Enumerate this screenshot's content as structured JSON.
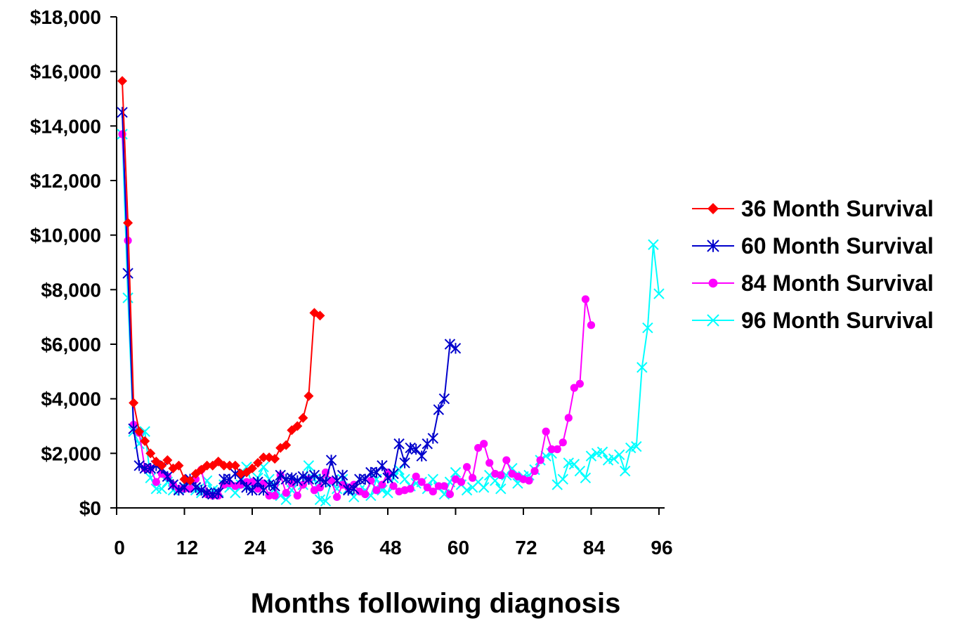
{
  "chart_data": {
    "type": "line",
    "title": "",
    "xlabel": "Months following diagnosis",
    "ylabel": "",
    "xlim": [
      0,
      97
    ],
    "ylim": [
      0,
      18000
    ],
    "x_ticks": [
      0,
      12,
      24,
      36,
      48,
      60,
      72,
      84,
      96
    ],
    "x_tick_labels": [
      "0",
      "12",
      "24",
      "36",
      "48",
      "60",
      "72",
      "84",
      "96"
    ],
    "y_ticks": [
      0,
      2000,
      4000,
      6000,
      8000,
      10000,
      12000,
      14000,
      16000,
      18000
    ],
    "y_tick_labels": [
      "$0",
      "$2,000",
      "$4,000",
      "$6,000",
      "$8,000",
      "$10,000",
      "$12,000",
      "$14,000",
      "$16,000",
      "$18,000"
    ],
    "grid": false,
    "legend_position": "right",
    "series": [
      {
        "name": "36 Month Survival",
        "color": "#ff0000",
        "marker": "diamond",
        "x": [
          1,
          2,
          3,
          4,
          5,
          6,
          7,
          8,
          9,
          10,
          11,
          12,
          13,
          14,
          15,
          16,
          17,
          18,
          19,
          20,
          21,
          22,
          23,
          24,
          25,
          26,
          27,
          28,
          29,
          30,
          31,
          32,
          33,
          34,
          35,
          36
        ],
        "values": [
          15650,
          10450,
          3850,
          2800,
          2450,
          2000,
          1700,
          1550,
          1750,
          1450,
          1550,
          1050,
          1000,
          1250,
          1400,
          1550,
          1550,
          1700,
          1550,
          1550,
          1550,
          1250,
          1300,
          1450,
          1650,
          1850,
          1850,
          1800,
          2200,
          2300,
          2850,
          3000,
          3300,
          4100,
          7150,
          7050
        ]
      },
      {
        "name": "60 Month Survival",
        "color": "#0000cc",
        "marker": "star",
        "x": [
          1,
          2,
          3,
          4,
          5,
          6,
          7,
          8,
          9,
          10,
          11,
          12,
          13,
          14,
          15,
          16,
          17,
          18,
          19,
          20,
          21,
          22,
          23,
          24,
          25,
          26,
          27,
          28,
          29,
          30,
          31,
          32,
          33,
          34,
          35,
          36,
          37,
          38,
          39,
          40,
          41,
          42,
          43,
          44,
          45,
          46,
          47,
          48,
          49,
          50,
          51,
          52,
          53,
          54,
          55,
          56,
          57,
          58,
          59,
          60
        ],
        "values": [
          14500,
          8600,
          2900,
          1550,
          1450,
          1450,
          1550,
          1450,
          1150,
          850,
          650,
          750,
          1050,
          750,
          650,
          550,
          500,
          550,
          1050,
          1050,
          1250,
          1050,
          750,
          650,
          950,
          650,
          850,
          800,
          1200,
          1050,
          1100,
          1000,
          1150,
          1050,
          1200,
          1050,
          950,
          1750,
          1000,
          1200,
          650,
          700,
          1050,
          1050,
          1300,
          1300,
          1550,
          1100,
          1250,
          2350,
          1650,
          2200,
          2150,
          1900,
          2350,
          2550,
          3600,
          4000,
          6000,
          5850
        ]
      },
      {
        "name": "84 Month Survival",
        "color": "#ff00ff",
        "marker": "circle",
        "x": [
          1,
          2,
          3,
          4,
          5,
          6,
          7,
          8,
          9,
          10,
          11,
          12,
          13,
          14,
          15,
          16,
          17,
          18,
          19,
          20,
          21,
          22,
          23,
          24,
          25,
          26,
          27,
          28,
          29,
          30,
          31,
          32,
          33,
          34,
          35,
          36,
          37,
          38,
          39,
          40,
          41,
          42,
          43,
          44,
          45,
          46,
          47,
          48,
          49,
          50,
          51,
          52,
          53,
          54,
          55,
          56,
          57,
          58,
          59,
          60,
          61,
          62,
          63,
          64,
          65,
          66,
          67,
          68,
          69,
          70,
          71,
          72,
          73,
          74,
          75,
          76,
          77,
          78,
          79,
          80,
          81,
          82,
          83,
          84
        ],
        "values": [
          13700,
          9800,
          3050,
          2750,
          1450,
          1450,
          950,
          1250,
          1150,
          850,
          700,
          700,
          700,
          1050,
          1400,
          500,
          450,
          450,
          850,
          900,
          800,
          850,
          950,
          950,
          700,
          900,
          450,
          450,
          1200,
          550,
          900,
          450,
          850,
          1050,
          650,
          750,
          1300,
          1000,
          400,
          850,
          750,
          850,
          600,
          500,
          1000,
          650,
          850,
          1300,
          800,
          600,
          650,
          700,
          1150,
          950,
          750,
          600,
          800,
          800,
          500,
          1050,
          950,
          1500,
          1100,
          2200,
          2350,
          1650,
          1250,
          1200,
          1750,
          1250,
          1150,
          1050,
          1000,
          1350,
          1750,
          2800,
          2150,
          2150,
          2400,
          3300,
          4400,
          4550,
          7650,
          6700
        ]
      },
      {
        "name": "96 Month Survival",
        "color": "#00ffff",
        "marker": "cross",
        "x": [
          1,
          2,
          3,
          4,
          5,
          6,
          7,
          8,
          9,
          10,
          11,
          12,
          13,
          14,
          15,
          16,
          17,
          18,
          19,
          20,
          21,
          22,
          23,
          24,
          25,
          26,
          27,
          28,
          29,
          30,
          31,
          32,
          33,
          34,
          35,
          36,
          37,
          38,
          39,
          40,
          41,
          42,
          43,
          44,
          45,
          46,
          47,
          48,
          49,
          50,
          51,
          52,
          53,
          54,
          55,
          56,
          57,
          58,
          59,
          60,
          61,
          62,
          63,
          64,
          65,
          66,
          67,
          68,
          69,
          70,
          71,
          72,
          73,
          74,
          75,
          76,
          77,
          78,
          79,
          80,
          81,
          82,
          83,
          84,
          85,
          86,
          87,
          88,
          89,
          90,
          91,
          92,
          93,
          94,
          95,
          96
        ],
        "values": [
          13700,
          7700,
          2800,
          2350,
          2800,
          1100,
          700,
          700,
          950,
          650,
          700,
          750,
          800,
          650,
          550,
          1000,
          650,
          600,
          850,
          750,
          550,
          850,
          1500,
          850,
          1100,
          1500,
          1050,
          700,
          450,
          300,
          650,
          1000,
          850,
          1550,
          1050,
          300,
          250,
          950,
          700,
          1050,
          700,
          400,
          650,
          650,
          450,
          1050,
          650,
          550,
          1100,
          1400,
          1050,
          800,
          900,
          950,
          700,
          1050,
          750,
          500,
          950,
          1300,
          850,
          650,
          750,
          950,
          750,
          1200,
          1000,
          700,
          1200,
          1450,
          900,
          1150,
          1200,
          1400,
          1750,
          1900,
          2000,
          850,
          1050,
          1650,
          1600,
          1350,
          1100,
          1900,
          2000,
          2050,
          1750,
          1800,
          1950,
          1350,
          2200,
          2250,
          5150,
          6600,
          9650,
          7850
        ]
      }
    ]
  }
}
